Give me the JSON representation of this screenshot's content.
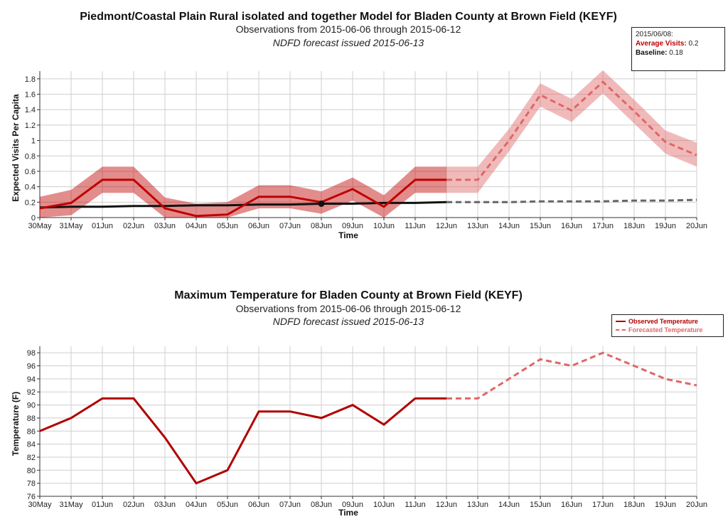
{
  "chart_data": [
    {
      "type": "line",
      "title": "Piedmont/Coastal Plain Rural isolated and together Model for Bladen County at Brown Field (KEYF)",
      "subtitle": "Observations from 2015-06-06 through 2015-06-12",
      "subtitle2": "NDFD forecast issued 2015-06-13",
      "xlabel": "Time",
      "ylabel": "Expected Visits Per Capita",
      "ylim": [
        0,
        1.9
      ],
      "yticks": [
        "0",
        "0.2",
        "0.4",
        "0.6",
        "0.8",
        "1",
        "1.2",
        "1.4",
        "1.6",
        "1.8"
      ],
      "categories": [
        "30May",
        "31May",
        "01Jun",
        "02Jun",
        "03Jun",
        "04Jun",
        "05Jun",
        "06Jun",
        "07Jun",
        "08Jun",
        "09Jun",
        "10Jun",
        "11Jun",
        "12Jun",
        "13Jun",
        "14Jun",
        "15Jun",
        "16Jun",
        "17Jun",
        "18Jun",
        "19Jun",
        "20Jun"
      ],
      "grid": true,
      "series": [
        {
          "role": "observed-visits",
          "color": "#c00000",
          "values": [
            0.12,
            0.19,
            0.49,
            0.49,
            0.12,
            0.02,
            0.04,
            0.27,
            0.27,
            0.2,
            0.37,
            0.14,
            0.49,
            0.49,
            null,
            null,
            null,
            null,
            null,
            null,
            null,
            null
          ],
          "lower": [
            0.0,
            0.03,
            0.32,
            0.32,
            0.0,
            0.0,
            0.0,
            0.12,
            0.12,
            0.05,
            0.22,
            0.0,
            0.32,
            0.32,
            null,
            null,
            null,
            null,
            null,
            null,
            null,
            null
          ],
          "upper": [
            0.27,
            0.36,
            0.66,
            0.66,
            0.26,
            0.18,
            0.2,
            0.42,
            0.42,
            0.34,
            0.52,
            0.29,
            0.66,
            0.66,
            null,
            null,
            null,
            null,
            null,
            null,
            null,
            null
          ]
        },
        {
          "role": "forecast-visits",
          "color": "#e06666",
          "values": [
            null,
            null,
            null,
            null,
            null,
            null,
            null,
            null,
            null,
            null,
            null,
            null,
            null,
            0.49,
            0.49,
            1.0,
            1.59,
            1.39,
            1.76,
            1.38,
            0.98,
            0.81
          ],
          "lower": [
            null,
            null,
            null,
            null,
            null,
            null,
            null,
            null,
            null,
            null,
            null,
            null,
            null,
            0.32,
            0.32,
            0.86,
            1.44,
            1.24,
            1.61,
            1.22,
            0.83,
            0.66
          ],
          "upper": [
            null,
            null,
            null,
            null,
            null,
            null,
            null,
            null,
            null,
            null,
            null,
            null,
            null,
            0.66,
            0.66,
            1.15,
            1.74,
            1.54,
            1.91,
            1.53,
            1.13,
            0.97
          ]
        },
        {
          "role": "baseline-observed",
          "color": "#111111",
          "values": [
            0.13,
            0.14,
            0.14,
            0.15,
            0.15,
            0.16,
            0.16,
            0.17,
            0.17,
            0.18,
            0.18,
            0.19,
            0.19,
            0.2,
            null,
            null,
            null,
            null,
            null,
            null,
            null,
            null
          ]
        },
        {
          "role": "baseline-forecast",
          "color": "#666666",
          "values": [
            null,
            null,
            null,
            null,
            null,
            null,
            null,
            null,
            null,
            null,
            null,
            null,
            null,
            0.2,
            0.2,
            0.2,
            0.21,
            0.21,
            0.21,
            0.22,
            0.22,
            0.23
          ]
        }
      ],
      "highlight": {
        "category": "08Jun",
        "value": 0.18
      },
      "tooltip": {
        "date": "2015/06/08:",
        "avg_label": "Average Visits:",
        "avg_value": "0.2",
        "base_label": "Baseline:",
        "base_value": "0.18"
      }
    },
    {
      "type": "line",
      "title": "Maximum Temperature for Bladen County at Brown Field (KEYF)",
      "subtitle": "Observations from 2015-06-06 through 2015-06-12",
      "subtitle2": "NDFD forecast issued 2015-06-13",
      "xlabel": "Time",
      "ylabel": "Temperature (F)",
      "ylim": [
        76,
        99
      ],
      "yticks": [
        "76",
        "78",
        "80",
        "82",
        "84",
        "86",
        "88",
        "90",
        "92",
        "94",
        "96",
        "98"
      ],
      "categories": [
        "30May",
        "31May",
        "01Jun",
        "02Jun",
        "03Jun",
        "04Jun",
        "05Jun",
        "06Jun",
        "07Jun",
        "08Jun",
        "09Jun",
        "10Jun",
        "11Jun",
        "12Jun",
        "13Jun",
        "14Jun",
        "15Jun",
        "16Jun",
        "17Jun",
        "18Jun",
        "19Jun",
        "20Jun"
      ],
      "grid": true,
      "legend_position": "top-right",
      "series": [
        {
          "name": "Observed Temperature",
          "color": "#b00000",
          "values": [
            86,
            88,
            91,
            91,
            85,
            78,
            80,
            89,
            89,
            88,
            90,
            87,
            91,
            91,
            null,
            null,
            null,
            null,
            null,
            null,
            null,
            null
          ]
        },
        {
          "name": "Forecasted Temperature",
          "color": "#e06666",
          "values": [
            null,
            null,
            null,
            null,
            null,
            null,
            null,
            null,
            null,
            null,
            null,
            null,
            null,
            91,
            91,
            94,
            97,
            96,
            98,
            96,
            94,
            93
          ]
        }
      ]
    }
  ]
}
